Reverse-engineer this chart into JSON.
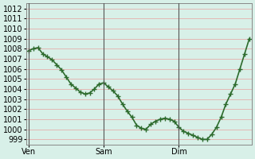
{
  "ylabel": "",
  "xlabel": "",
  "background_color": "#d8f0e8",
  "plot_bg_color": "#d8f0e8",
  "line_color": "#2d6b2d",
  "marker": "+",
  "marker_color": "#2d6b2d",
  "marker_size": 4,
  "linewidth": 1.2,
  "ylim": [
    998.5,
    1012.5
  ],
  "yticks": [
    999,
    1000,
    1001,
    1002,
    1003,
    1004,
    1005,
    1006,
    1007,
    1008,
    1009,
    1010,
    1011,
    1012
  ],
  "xtick_labels": [
    "Ven",
    "Sam",
    "Dim"
  ],
  "xtick_positions": [
    0,
    16,
    32
  ],
  "vline_positions": [
    0,
    16,
    32
  ],
  "x_values": [
    0,
    1,
    2,
    3,
    4,
    5,
    6,
    7,
    8,
    9,
    10,
    11,
    12,
    13,
    14,
    15,
    16,
    17,
    18,
    19,
    20,
    21,
    22,
    23,
    24,
    25,
    26,
    27,
    28,
    29,
    30,
    31,
    32,
    33,
    34,
    35,
    36,
    37,
    38,
    39,
    40,
    41,
    42,
    43,
    44,
    45,
    46,
    47
  ],
  "y_values": [
    1007.8,
    1008.0,
    1008.1,
    1007.5,
    1007.2,
    1006.9,
    1006.4,
    1005.9,
    1005.2,
    1004.5,
    1004.1,
    1003.7,
    1003.5,
    1003.6,
    1004.0,
    1004.5,
    1004.6,
    1004.2,
    1003.8,
    1003.3,
    1002.5,
    1001.8,
    1001.2,
    1000.4,
    1000.1,
    1000.0,
    1000.5,
    1000.8,
    1001.0,
    1001.1,
    1001.0,
    1000.8,
    1000.2,
    999.8,
    999.6,
    999.4,
    999.2,
    999.0,
    999.0,
    999.5,
    1000.2,
    1001.2,
    1002.5,
    1003.5,
    1004.5,
    1006.0,
    1007.5,
    1009.0
  ],
  "grid_color_major": "#e8a0a0",
  "grid_color_minor": "#e8a0a0",
  "tick_fontsize": 7,
  "vline_color": "#555555",
  "vline_linewidth": 0.8,
  "xlim": [
    -0.5,
    47.5
  ]
}
